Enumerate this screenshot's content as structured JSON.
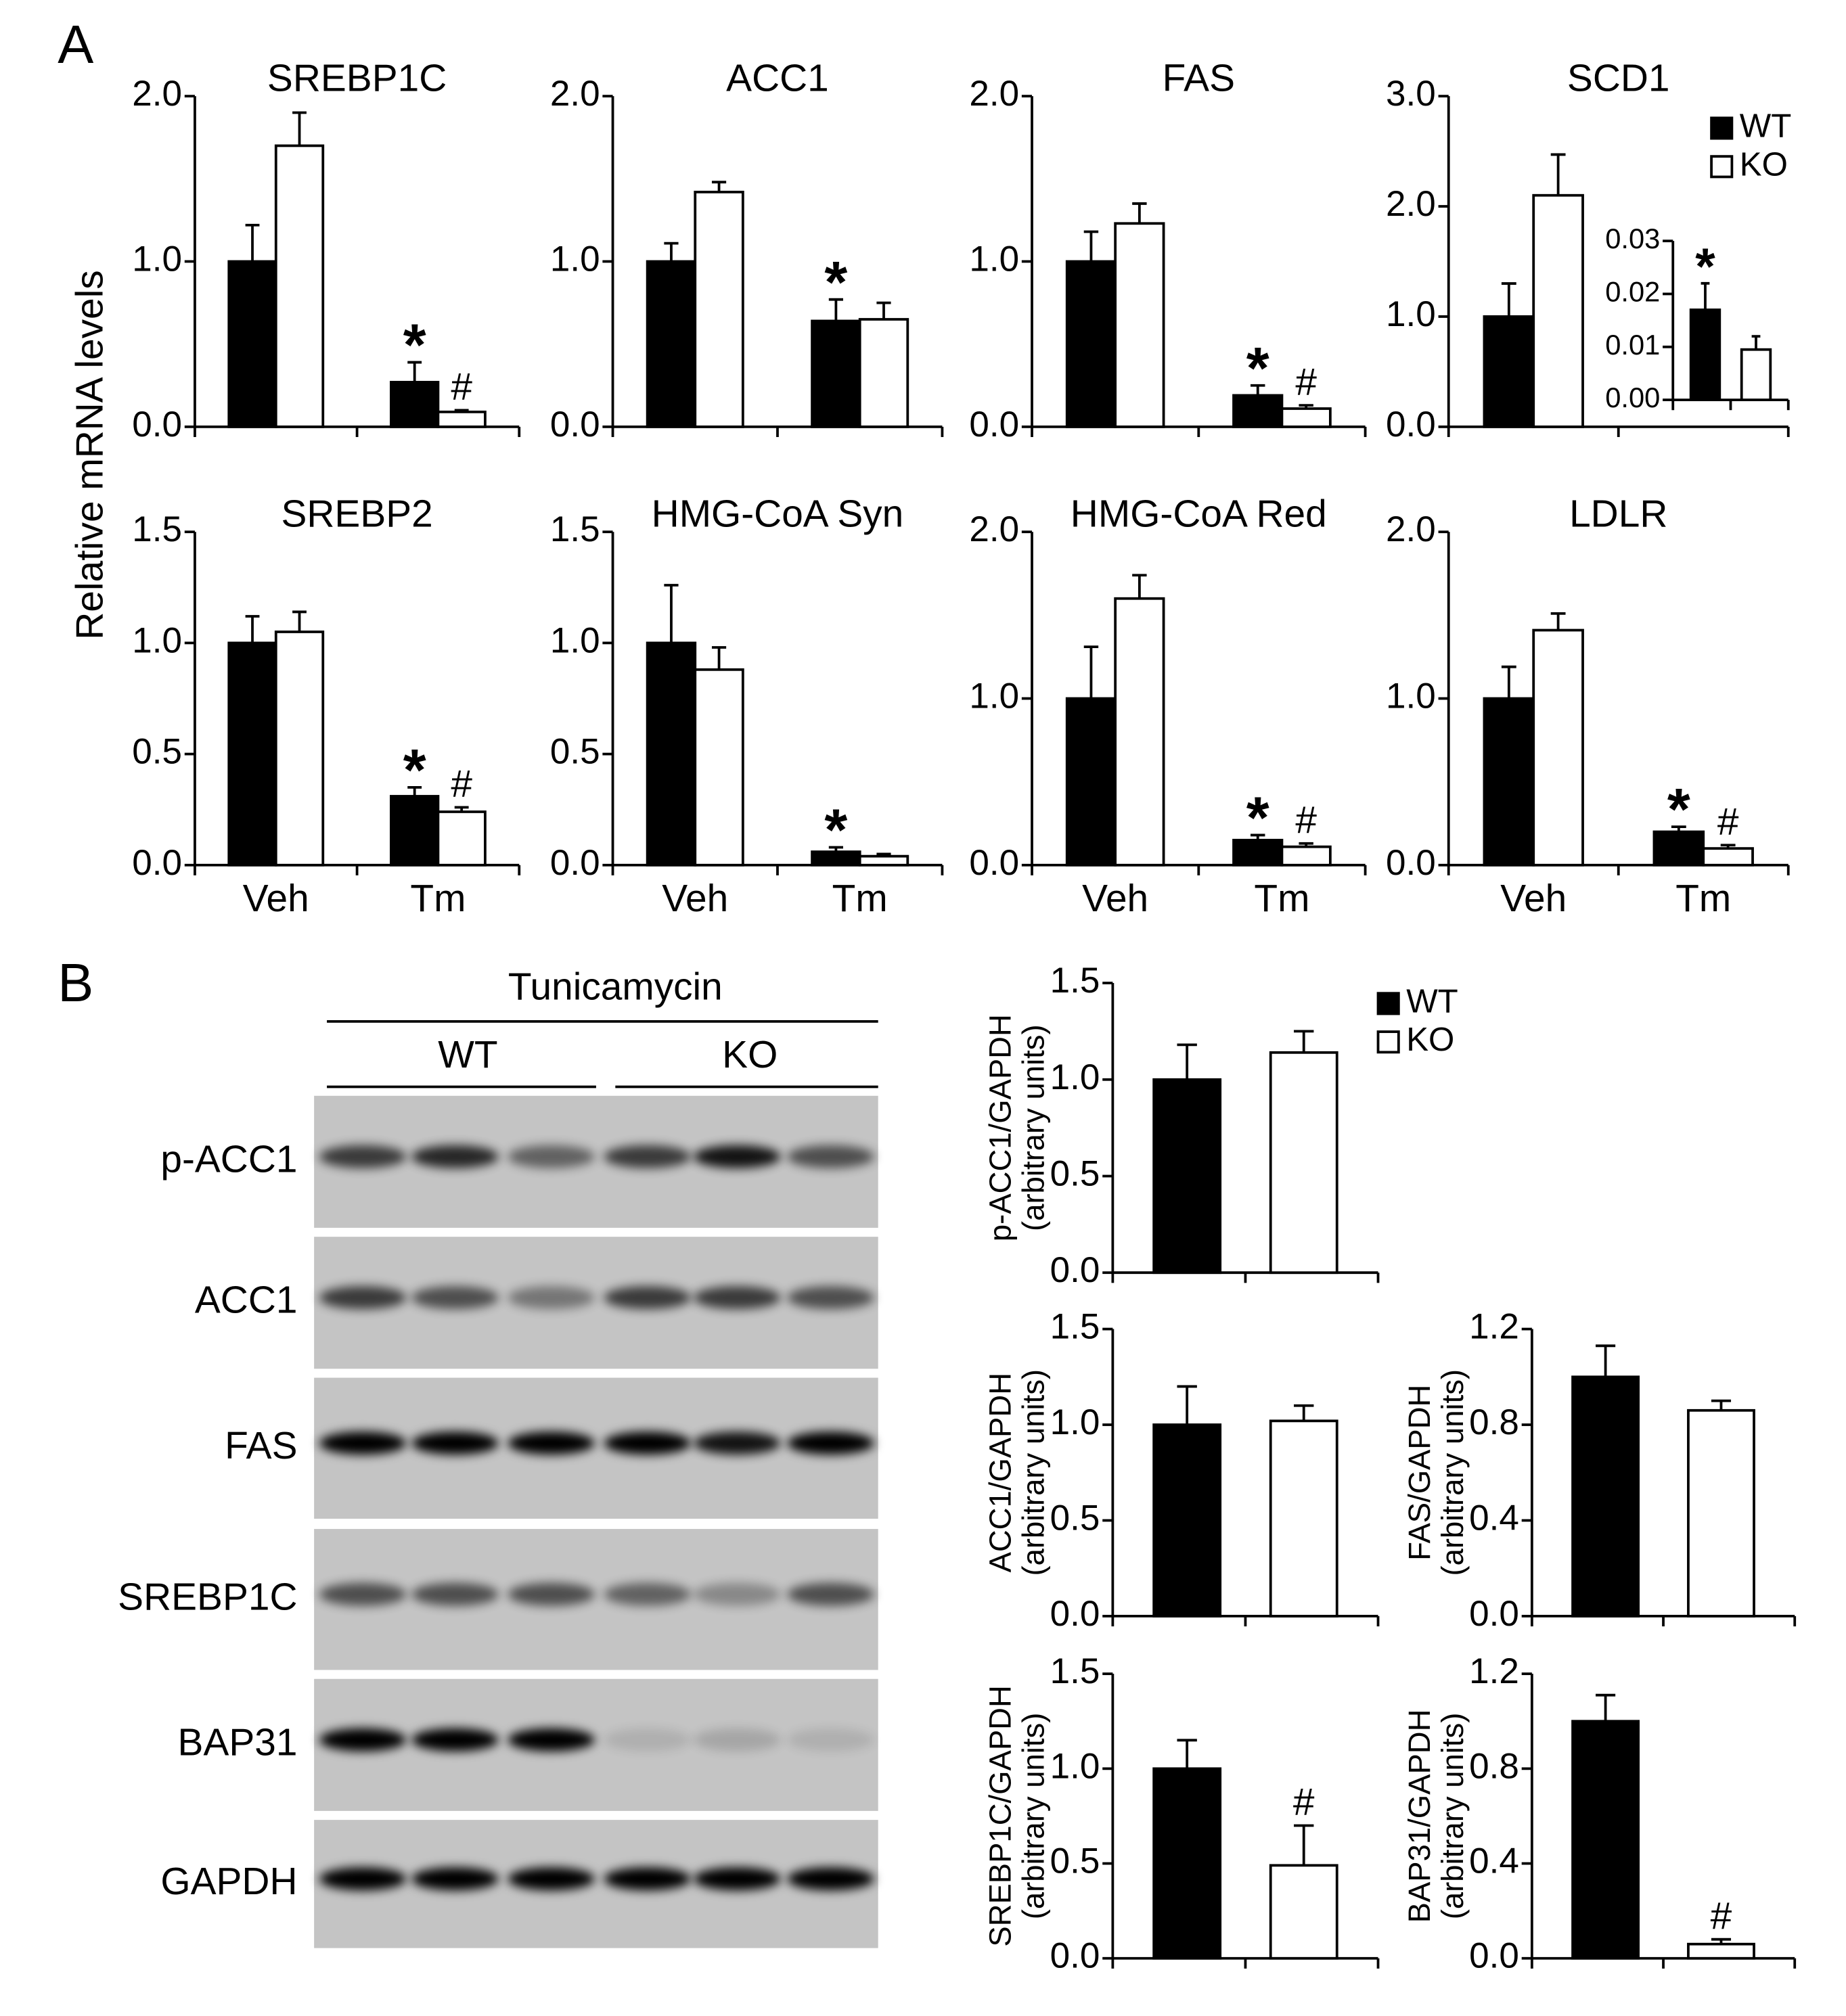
{
  "panel_a": {
    "label": "A",
    "ylabel": "Relative mRNA levels"
  },
  "panel_b": {
    "label": "B"
  },
  "blot": {
    "treatment": "Tunicamycin",
    "groups": [
      "WT",
      "KO"
    ],
    "rows": [
      "p-ACC1",
      "ACC1",
      "FAS",
      "SREBP1C",
      "BAP31",
      "GAPDH"
    ]
  },
  "chart_data": [
    {
      "type": "bar",
      "title": "SREBP1C",
      "categories": [
        null,
        null
      ],
      "ylim": [
        0,
        2
      ],
      "yticks": [
        {
          "value": 0,
          "label": "0.0"
        },
        {
          "value": 1,
          "label": "1.0"
        },
        {
          "value": 2,
          "label": "2.0"
        }
      ],
      "series": [
        {
          "name": "WT",
          "color": "#000000",
          "values": [
            1.0,
            0.27
          ],
          "errors": [
            0.22,
            0.12
          ],
          "markers": [
            null,
            "*"
          ]
        },
        {
          "name": "KO",
          "color": "#ffffff",
          "values": [
            1.7,
            0.09
          ],
          "errors": [
            0.2,
            0.01
          ],
          "markers": [
            null,
            "#"
          ]
        }
      ]
    },
    {
      "type": "bar",
      "title": "ACC1",
      "categories": [
        null,
        null
      ],
      "ylim": [
        0,
        2
      ],
      "yticks": [
        {
          "value": 0,
          "label": "0.0"
        },
        {
          "value": 1,
          "label": "1.0"
        },
        {
          "value": 2,
          "label": "2.0"
        }
      ],
      "series": [
        {
          "name": "WT",
          "color": "#000000",
          "values": [
            1.0,
            0.64
          ],
          "errors": [
            0.11,
            0.13
          ],
          "markers": [
            null,
            "*"
          ]
        },
        {
          "name": "KO",
          "color": "#ffffff",
          "values": [
            1.42,
            0.65
          ],
          "errors": [
            0.06,
            0.1
          ]
        }
      ]
    },
    {
      "type": "bar",
      "title": "FAS",
      "categories": [
        null,
        null
      ],
      "ylim": [
        0,
        2
      ],
      "yticks": [
        {
          "value": 0,
          "label": "0.0"
        },
        {
          "value": 1,
          "label": "1.0"
        },
        {
          "value": 2,
          "label": "2.0"
        }
      ],
      "series": [
        {
          "name": "WT",
          "color": "#000000",
          "values": [
            1.0,
            0.19
          ],
          "errors": [
            0.18,
            0.06
          ],
          "markers": [
            null,
            "*"
          ]
        },
        {
          "name": "KO",
          "color": "#ffffff",
          "values": [
            1.23,
            0.11
          ],
          "errors": [
            0.12,
            0.02
          ],
          "markers": [
            null,
            "#"
          ]
        }
      ]
    },
    {
      "type": "bar",
      "title": "SCD1",
      "categories": [
        null,
        null
      ],
      "ylim": [
        0,
        3
      ],
      "yticks": [
        {
          "value": 0,
          "label": "0.0"
        },
        {
          "value": 1,
          "label": "1.0"
        },
        {
          "value": 2,
          "label": "2.0"
        },
        {
          "value": 3,
          "label": "3.0"
        }
      ],
      "legend": "top-right",
      "series": [
        {
          "name": "WT",
          "color": "#000000",
          "values": [
            1.0,
            null
          ],
          "errors": [
            0.3,
            null
          ]
        },
        {
          "name": "KO",
          "color": "#ffffff",
          "values": [
            2.1,
            null
          ],
          "errors": [
            0.37,
            null
          ]
        }
      ],
      "inset": {
        "type": "bar",
        "categories": [
          null
        ],
        "ylim": [
          0,
          0.03
        ],
        "yticks": [
          {
            "value": 0,
            "label": "0.00"
          },
          {
            "value": 0.01,
            "label": "0.01"
          },
          {
            "value": 0.02,
            "label": "0.02"
          },
          {
            "value": 0.03,
            "label": "0.03"
          }
        ],
        "series": [
          {
            "name": "WT",
            "color": "#000000",
            "values": [
              0.017
            ],
            "errors": [
              0.005
            ],
            "markers": [
              "*"
            ]
          },
          {
            "name": "KO",
            "color": "#ffffff",
            "values": [
              0.0095
            ],
            "errors": [
              0.0025
            ]
          }
        ]
      }
    },
    {
      "type": "bar",
      "title": "SREBP2",
      "categories": [
        "Veh",
        "Tm"
      ],
      "ylim": [
        0,
        1.5
      ],
      "yticks": [
        {
          "value": 0,
          "label": "0.0"
        },
        {
          "value": 0.5,
          "label": "0.5"
        },
        {
          "value": 1,
          "label": "1.0"
        },
        {
          "value": 1.5,
          "label": "1.5"
        }
      ],
      "series": [
        {
          "name": "WT",
          "color": "#000000",
          "values": [
            1.0,
            0.31
          ],
          "errors": [
            0.12,
            0.04
          ],
          "markers": [
            null,
            "*"
          ]
        },
        {
          "name": "KO",
          "color": "#ffffff",
          "values": [
            1.05,
            0.24
          ],
          "errors": [
            0.09,
            0.02
          ],
          "markers": [
            null,
            "#"
          ]
        }
      ]
    },
    {
      "type": "bar",
      "title": "HMG-CoA Syn",
      "categories": [
        "Veh",
        "Tm"
      ],
      "ylim": [
        0,
        1.5
      ],
      "yticks": [
        {
          "value": 0,
          "label": "0.0"
        },
        {
          "value": 0.5,
          "label": "0.5"
        },
        {
          "value": 1,
          "label": "1.0"
        },
        {
          "value": 1.5,
          "label": "1.5"
        }
      ],
      "series": [
        {
          "name": "WT",
          "color": "#000000",
          "values": [
            1.0,
            0.06
          ],
          "errors": [
            0.26,
            0.02
          ],
          "markers": [
            null,
            "*"
          ]
        },
        {
          "name": "KO",
          "color": "#ffffff",
          "values": [
            0.88,
            0.04
          ],
          "errors": [
            0.1,
            0.01
          ]
        }
      ]
    },
    {
      "type": "bar",
      "title": "HMG-CoA Red",
      "categories": [
        "Veh",
        "Tm"
      ],
      "ylim": [
        0,
        2
      ],
      "yticks": [
        {
          "value": 0,
          "label": "0.0"
        },
        {
          "value": 1,
          "label": "1.0"
        },
        {
          "value": 2,
          "label": "2.0"
        }
      ],
      "series": [
        {
          "name": "WT",
          "color": "#000000",
          "values": [
            1.0,
            0.15
          ],
          "errors": [
            0.31,
            0.03
          ],
          "markers": [
            null,
            "*"
          ]
        },
        {
          "name": "KO",
          "color": "#ffffff",
          "values": [
            1.6,
            0.11
          ],
          "errors": [
            0.14,
            0.02
          ],
          "markers": [
            null,
            "#"
          ]
        }
      ]
    },
    {
      "type": "bar",
      "title": "LDLR",
      "categories": [
        "Veh",
        "Tm"
      ],
      "ylim": [
        0,
        2
      ],
      "yticks": [
        {
          "value": 0,
          "label": "0.0"
        },
        {
          "value": 1,
          "label": "1.0"
        },
        {
          "value": 2,
          "label": "2.0"
        }
      ],
      "series": [
        {
          "name": "WT",
          "color": "#000000",
          "values": [
            1.0,
            0.2
          ],
          "errors": [
            0.19,
            0.03
          ],
          "markers": [
            null,
            "*"
          ]
        },
        {
          "name": "KO",
          "color": "#ffffff",
          "values": [
            1.41,
            0.1
          ],
          "errors": [
            0.1,
            0.02
          ],
          "markers": [
            null,
            "#"
          ]
        }
      ]
    },
    {
      "type": "bar",
      "ylabel": [
        "p-ACC1/GAPDH",
        "(arbitrary units)"
      ],
      "categories": [
        null
      ],
      "ylim": [
        0,
        1.5
      ],
      "yticks": [
        {
          "value": 0,
          "label": "0.0"
        },
        {
          "value": 0.5,
          "label": "0.5"
        },
        {
          "value": 1,
          "label": "1.0"
        },
        {
          "value": 1.5,
          "label": "1.5"
        }
      ],
      "legend": "top-right",
      "series": [
        {
          "name": "WT",
          "color": "#000000",
          "values": [
            1.0
          ],
          "errors": [
            0.18
          ]
        },
        {
          "name": "KO",
          "color": "#ffffff",
          "values": [
            1.14
          ],
          "errors": [
            0.11
          ]
        }
      ]
    },
    {
      "type": "bar",
      "ylabel": [
        "ACC1/GAPDH",
        "(arbitrary units)"
      ],
      "categories": [
        null
      ],
      "ylim": [
        0,
        1.5
      ],
      "yticks": [
        {
          "value": 0,
          "label": "0.0"
        },
        {
          "value": 0.5,
          "label": "0.5"
        },
        {
          "value": 1,
          "label": "1.0"
        },
        {
          "value": 1.5,
          "label": "1.5"
        }
      ],
      "series": [
        {
          "name": "WT",
          "color": "#000000",
          "values": [
            1.0
          ],
          "errors": [
            0.2
          ]
        },
        {
          "name": "KO",
          "color": "#ffffff",
          "values": [
            1.02
          ],
          "errors": [
            0.08
          ]
        }
      ]
    },
    {
      "type": "bar",
      "ylabel": [
        "FAS/GAPDH",
        "(arbitrary units)"
      ],
      "categories": [
        null
      ],
      "ylim": [
        0,
        1.2
      ],
      "yticks": [
        {
          "value": 0,
          "label": "0.0"
        },
        {
          "value": 0.4,
          "label": "0.4"
        },
        {
          "value": 0.8,
          "label": "0.8"
        },
        {
          "value": 1.2,
          "label": "1.2"
        }
      ],
      "series": [
        {
          "name": "WT",
          "color": "#000000",
          "values": [
            1.0
          ],
          "errors": [
            0.13
          ]
        },
        {
          "name": "KO",
          "color": "#ffffff",
          "values": [
            0.86
          ],
          "errors": [
            0.04
          ]
        }
      ]
    },
    {
      "type": "bar",
      "ylabel": [
        "SREBP1C/GAPDH",
        "(arbitrary units)"
      ],
      "categories": [
        null
      ],
      "ylim": [
        0,
        1.5
      ],
      "yticks": [
        {
          "value": 0,
          "label": "0.0"
        },
        {
          "value": 0.5,
          "label": "0.5"
        },
        {
          "value": 1,
          "label": "1.0"
        },
        {
          "value": 1.5,
          "label": "1.5"
        }
      ],
      "series": [
        {
          "name": "WT",
          "color": "#000000",
          "values": [
            1.0
          ],
          "errors": [
            0.15
          ]
        },
        {
          "name": "KO",
          "color": "#ffffff",
          "values": [
            0.49
          ],
          "errors": [
            0.21
          ],
          "markers": [
            "#"
          ]
        }
      ]
    },
    {
      "type": "bar",
      "ylabel": [
        "BAP31/GAPDH",
        "(arbitrary units)"
      ],
      "categories": [
        null
      ],
      "ylim": [
        0,
        1.2
      ],
      "yticks": [
        {
          "value": 0,
          "label": "0.0"
        },
        {
          "value": 0.4,
          "label": "0.4"
        },
        {
          "value": 0.8,
          "label": "0.8"
        },
        {
          "value": 1.2,
          "label": "1.2"
        }
      ],
      "series": [
        {
          "name": "WT",
          "color": "#000000",
          "values": [
            1.0
          ],
          "errors": [
            0.11
          ]
        },
        {
          "name": "KO",
          "color": "#ffffff",
          "values": [
            0.06
          ],
          "errors": [
            0.02
          ],
          "markers": [
            "#"
          ]
        }
      ]
    }
  ]
}
